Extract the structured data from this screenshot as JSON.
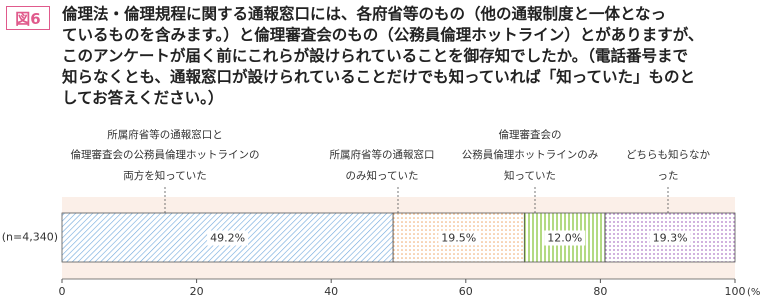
{
  "badge": "図6",
  "chart_data": {
    "type": "bar",
    "title": "倫理法・倫理規程に関する通報窓口には、各府省等のもの（他の通報制度と一体となっ\nているものを含みます。）と倫理審査会のもの（公務員倫理ホットライン）とがありますが、\nこのアンケートが届く前にこれらが設けられていることを御存知でしたか。（電話番号まで\n知らなくとも、通報窓口が設けられていることだけでも知っていれば「知っていた」ものと\nしてお答えください。）",
    "categories": [
      "(n=4,340)"
    ],
    "series": [
      {
        "name": "所属府省等の通報窓口と\n倫理審査会の公務員倫理ホットラインの\n両方を知っていた",
        "color": "#6fa8dc",
        "values": [
          49.2
        ],
        "value_labels": [
          "49.2%"
        ]
      },
      {
        "name": "所属府省等の通報窓口\nのみ知っていた",
        "color": "#f0a868",
        "values": [
          19.5
        ],
        "value_labels": [
          "19.5%"
        ]
      },
      {
        "name": "倫理審査会の\n公務員倫理ホットラインのみ\n知っていた",
        "color": "#8cc63f",
        "values": [
          12.0
        ],
        "value_labels": [
          "12.0%"
        ]
      },
      {
        "name": "どちらも知らなかった",
        "color": "#b07cc6",
        "values": [
          19.3
        ],
        "value_labels": [
          "19.3%"
        ]
      }
    ],
    "xlim": [
      0,
      100
    ],
    "xticks": [
      0,
      20,
      40,
      60,
      80,
      100
    ],
    "xlabel": "(%)"
  }
}
